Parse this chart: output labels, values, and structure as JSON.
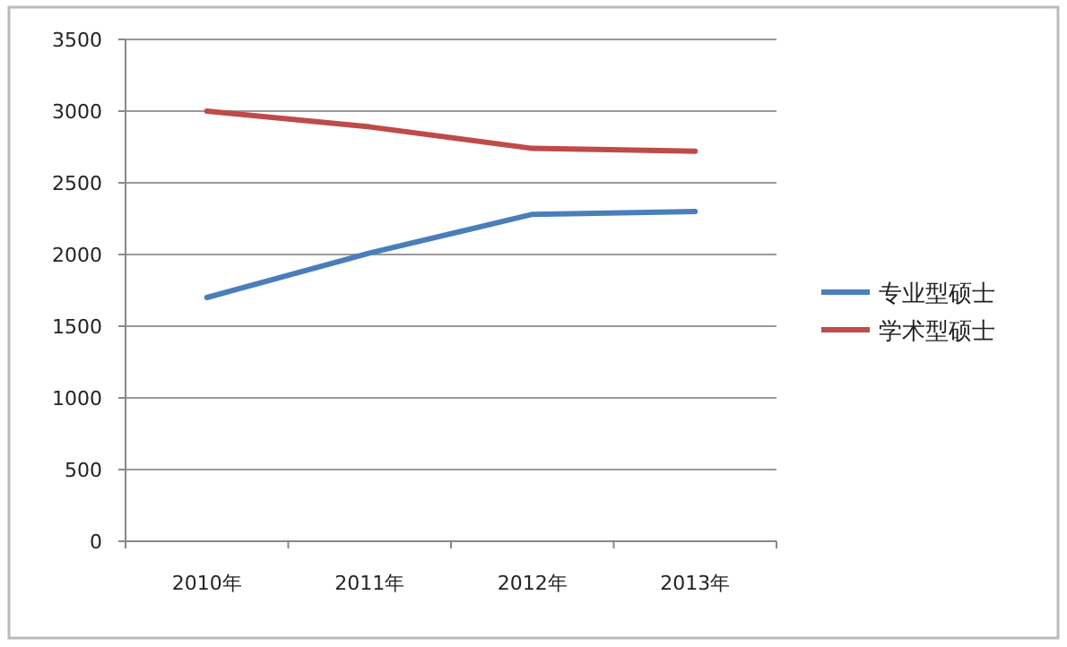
{
  "chart_data": {
    "type": "line",
    "categories": [
      "2010年",
      "2011年",
      "2012年",
      "2013年"
    ],
    "series": [
      {
        "name": "专业型硕士",
        "color": "#4a7ebb",
        "values": [
          1700,
          2010,
          2280,
          2300
        ]
      },
      {
        "name": "学术型硕士",
        "color": "#be4b48",
        "values": [
          3000,
          2890,
          2740,
          2720
        ]
      }
    ],
    "ylim": [
      0,
      3500
    ],
    "yticks": [
      0,
      500,
      1000,
      1500,
      2000,
      2500,
      3000,
      3500
    ],
    "grid": "y",
    "legend": "right",
    "marker": "none",
    "line_style": "solid"
  }
}
